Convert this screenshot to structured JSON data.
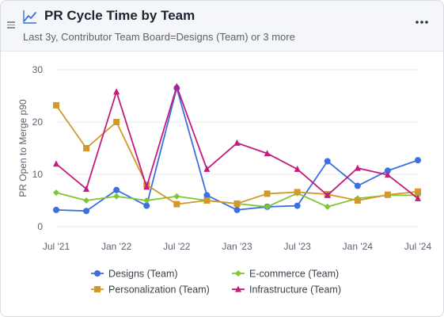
{
  "header": {
    "title": "PR Cycle Time by Team",
    "subtitle": "Last 3y, Contributor Team Board=Designs (Team) or 3 more",
    "title_icon": "line-chart-icon",
    "menu_icon": "more-horizontal-icon",
    "drag_icon": "drag-handle-icon"
  },
  "chart_data": {
    "type": "line",
    "ylabel": "PR Open to Merge p90",
    "xlabel": "",
    "ylim": [
      0,
      30
    ],
    "yticks": [
      0,
      10,
      20,
      30
    ],
    "x_labels": [
      "Jul '21",
      "Jan '22",
      "Jul '22",
      "Jan '23",
      "Jul '23",
      "Jan '24",
      "Jul '24"
    ],
    "x_label_positions": [
      0,
      2,
      4,
      6,
      8,
      10,
      12
    ],
    "x": [
      0,
      1,
      2,
      3,
      4,
      5,
      6,
      7,
      8,
      9,
      10,
      11,
      12
    ],
    "grid": "horizontal",
    "legend_position": "bottom",
    "series": [
      {
        "name": "Designs (Team)",
        "color": "#3d6fe0",
        "marker": "circle",
        "values": [
          3.2,
          3.0,
          7.0,
          4.0,
          26.5,
          6.0,
          3.2,
          3.8,
          4.0,
          12.5,
          7.8,
          10.7,
          12.7
        ]
      },
      {
        "name": "E-commerce (Team)",
        "color": "#7ec634",
        "marker": "diamond",
        "values": [
          6.5,
          5.0,
          5.8,
          5.0,
          5.8,
          5.0,
          4.4,
          3.8,
          6.4,
          3.8,
          5.4,
          6.0,
          6.0
        ]
      },
      {
        "name": "Personalization (Team)",
        "color": "#d1982c",
        "marker": "square",
        "values": [
          23.2,
          15.0,
          20.0,
          8.0,
          4.3,
          5.0,
          4.4,
          6.3,
          6.6,
          6.2,
          5.0,
          6.1,
          6.7
        ]
      },
      {
        "name": "Infrastructure (Team)",
        "color": "#c31b7e",
        "marker": "triangle",
        "values": [
          12.0,
          7.2,
          25.8,
          7.6,
          26.8,
          11.0,
          16.0,
          14.0,
          11.0,
          6.0,
          11.2,
          9.9,
          5.4
        ]
      }
    ]
  }
}
